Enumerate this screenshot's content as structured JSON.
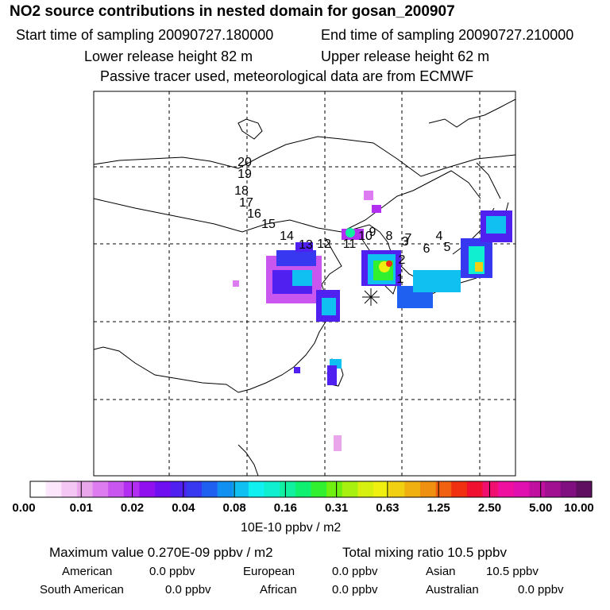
{
  "header": {
    "title": "NO2 source contributions in nested domain for gosan_200907",
    "start_time": "Start time of sampling 20090727.180000",
    "end_time": "End time of sampling 20090727.210000",
    "lower_height": "Lower release height   82 m",
    "upper_height": "Upper release height   62 m",
    "tracer_note": "Passive tracer used, meteorological data are from ECMWF"
  },
  "trajectory_labels": [
    "1",
    "2",
    "3",
    "4",
    "5",
    "6",
    "7",
    "8",
    "9",
    "10",
    "11",
    "12",
    "13",
    "14",
    "15",
    "16",
    "17",
    "18",
    "19",
    "20"
  ],
  "colorbar": {
    "ticks": [
      "0.00",
      "0.01",
      "0.02",
      "0.04",
      "0.08",
      "0.16",
      "0.31",
      "0.63",
      "1.25",
      "2.50",
      "5.00",
      "10.00"
    ],
    "unit": "10E-10 ppbv / m2",
    "colors": [
      "#ffffff",
      "#fbe6fb",
      "#f3c6f3",
      "#eaa6ea",
      "#dd7cf0",
      "#c956ee",
      "#b22ef0",
      "#9010f0",
      "#6e10f0",
      "#5020f0",
      "#3838f0",
      "#2060f0",
      "#1090f0",
      "#10c0f0",
      "#10f0f0",
      "#10f0d0",
      "#10f0a0",
      "#10f070",
      "#30f030",
      "#70f010",
      "#a8f010",
      "#d8f010",
      "#f0f010",
      "#f0d010",
      "#f0b010",
      "#f09010",
      "#f06010",
      "#f03010",
      "#f01030",
      "#f01070",
      "#f010a0",
      "#e010b0",
      "#c010a0",
      "#a01090",
      "#80107f",
      "#601060"
    ]
  },
  "summary": {
    "max_value": "Maximum value  0.270E-09 ppbv / m2",
    "total_mixing": "Total mixing ratio       10.5 ppbv"
  },
  "regions": [
    {
      "name": "American",
      "value": "0.0 ppbv"
    },
    {
      "name": "European",
      "value": "0.0 ppbv"
    },
    {
      "name": "Asian",
      "value": "10.5 ppbv"
    },
    {
      "name": "South American",
      "value": "0.0 ppbv"
    },
    {
      "name": "African",
      "value": "0.0 ppbv"
    },
    {
      "name": "Australian",
      "value": "0.0 ppbv"
    }
  ]
}
